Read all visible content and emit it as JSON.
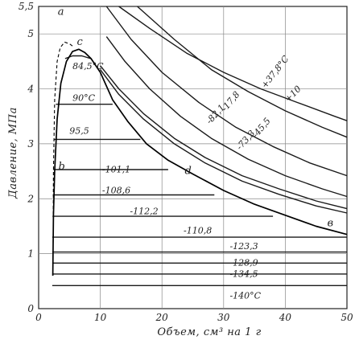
{
  "chart_data": {
    "type": "line",
    "title": "",
    "xlabel": "Объем, см³ на 1 г",
    "ylabel": "Давление, МПа",
    "xlim": [
      0,
      50
    ],
    "ylim": [
      0,
      5.5
    ],
    "x_ticks": [
      "0",
      "10",
      "20",
      "30",
      "40",
      "50"
    ],
    "y_ticks": [
      "0",
      "1",
      "2",
      "3",
      "4",
      "5",
      "5,5"
    ],
    "grid": true,
    "point_labels": [
      "a",
      "c",
      "b",
      "d",
      "в"
    ],
    "point_positions": [
      [
        3.1,
        5.35
      ],
      [
        6.2,
        4.8
      ],
      [
        3.2,
        2.53
      ],
      [
        23.7,
        2.45
      ],
      [
        46.8,
        1.5
      ]
    ],
    "dome": {
      "name": "",
      "x": [
        2.3,
        2.4,
        2.6,
        3.0,
        3.6,
        4.5,
        5.5,
        6.5,
        7.5,
        8.5,
        10.0,
        12.0,
        14.5,
        17.5,
        21.0,
        25.0,
        30.0,
        35.0,
        40.0,
        45.0,
        50.0
      ],
      "y": [
        0.6,
        1.7,
        2.5,
        3.45,
        4.1,
        4.5,
        4.68,
        4.72,
        4.66,
        4.55,
        4.3,
        3.8,
        3.4,
        3.0,
        2.7,
        2.45,
        2.15,
        1.9,
        1.7,
        1.5,
        1.35
      ]
    },
    "dashed_curve": {
      "x": [
        2.35,
        2.4,
        2.6,
        3.0,
        3.5,
        4.2,
        5.0,
        5.5
      ],
      "y": [
        1.2,
        2.5,
        3.8,
        4.5,
        4.75,
        4.85,
        4.82,
        4.78
      ]
    },
    "isotherms": [
      {
        "label": "+37,8°C",
        "x": [
          13.0,
          18.0,
          24.0,
          30.0,
          36.0,
          42.0,
          48.0,
          50.0
        ],
        "y": [
          5.5,
          5.1,
          4.65,
          4.3,
          4.0,
          3.75,
          3.5,
          3.42
        ],
        "label_at": [
          36.8,
          4.0
        ],
        "label_angle": -52
      },
      {
        "label": "+10",
        "x": [
          16.0,
          22.0,
          28.0,
          34.0,
          40.0,
          46.0,
          50.0
        ],
        "y": [
          5.5,
          4.9,
          4.35,
          3.95,
          3.6,
          3.3,
          3.12
        ],
        "label_at": [
          40.5,
          3.75
        ],
        "label_angle": -45
      },
      {
        "label": "-17,8",
        "x": [
          11.0,
          15.0,
          20.0,
          26.0,
          32.0,
          38.0,
          44.0,
          50.0
        ],
        "y": [
          5.5,
          4.9,
          4.3,
          3.75,
          3.3,
          2.95,
          2.65,
          2.42
        ],
        "label_at": [
          30.3,
          3.58
        ],
        "label_angle": -50
      },
      {
        "label": "-45,5",
        "x": [
          11.0,
          14.0,
          18.0,
          23.0,
          28.0,
          34.0,
          40.0,
          46.0,
          50.0
        ],
        "y": [
          4.95,
          4.5,
          4.0,
          3.5,
          3.1,
          2.72,
          2.42,
          2.18,
          2.04
        ],
        "label_at": [
          35.3,
          3.1
        ],
        "label_angle": -50
      },
      {
        "label": "-82,1",
        "x": [
          10.0,
          13.0,
          17.0,
          22.0,
          27.0,
          33.0,
          39.0,
          45.0,
          50.0
        ],
        "y": [
          4.42,
          4.0,
          3.55,
          3.1,
          2.75,
          2.42,
          2.18,
          1.96,
          1.82
        ],
        "label_at": [
          27.8,
          3.35
        ],
        "label_angle": -48
      },
      {
        "label": "-73,3",
        "x": [
          10.0,
          13.0,
          17.0,
          22.0,
          27.0,
          33.0,
          39.0,
          45.0,
          50.0
        ],
        "y": [
          4.35,
          3.9,
          3.45,
          3.0,
          2.65,
          2.32,
          2.08,
          1.87,
          1.74
        ],
        "label_at": [
          32.7,
          2.88
        ],
        "label_angle": -48
      },
      {
        "label": "84,5°C",
        "x": [
          4.3,
          5.5,
          7.0,
          8.5
        ],
        "y": [
          4.55,
          4.6,
          4.6,
          4.55
        ],
        "label_at": [
          5.5,
          4.36
        ],
        "label_angle": 0
      },
      {
        "label": "90°C",
        "x": [
          2.8,
          12.0
        ],
        "y": [
          3.72,
          3.72
        ],
        "label_at": [
          5.5,
          3.78
        ],
        "label_angle": 0
      },
      {
        "label": "95,5",
        "x": [
          2.5,
          16.5
        ],
        "y": [
          3.08,
          3.08
        ],
        "label_at": [
          5.0,
          3.18
        ],
        "label_angle": 0
      },
      {
        "label": "-101,1",
        "x": [
          2.4,
          21.0
        ],
        "y": [
          2.53,
          2.53
        ],
        "label_at": [
          10.3,
          2.48
        ],
        "label_angle": 0
      },
      {
        "label": "-108,6",
        "x": [
          2.3,
          28.5
        ],
        "y": [
          2.07,
          2.07
        ],
        "label_at": [
          10.3,
          2.1
        ],
        "label_angle": 0
      },
      {
        "label": "-112,2",
        "x": [
          2.25,
          38.0
        ],
        "y": [
          1.68,
          1.68
        ],
        "label_at": [
          14.8,
          1.72
        ],
        "label_angle": 0
      },
      {
        "label": "-110,8",
        "x": [
          2.2,
          50.0
        ],
        "y": [
          1.3,
          1.3
        ],
        "label_at": [
          23.5,
          1.37
        ],
        "label_angle": 0
      },
      {
        "label": "-123,3",
        "x": [
          2.2,
          50.0
        ],
        "y": [
          1.03,
          1.03
        ],
        "label_at": [
          31.0,
          1.08
        ],
        "label_angle": 0
      },
      {
        "label": "-128,9",
        "x": [
          2.2,
          50.0
        ],
        "y": [
          0.83,
          0.83
        ],
        "label_at": [
          31.0,
          0.78
        ],
        "label_angle": 0
      },
      {
        "label": "-134,5",
        "x": [
          2.2,
          50.0
        ],
        "y": [
          0.63,
          0.63
        ],
        "label_at": [
          31.0,
          0.58
        ],
        "label_angle": 0
      },
      {
        "label": "-140°C",
        "x": [
          2.2,
          50.0
        ],
        "y": [
          0.42,
          0.42
        ],
        "label_at": [
          31.0,
          0.18
        ],
        "label_angle": 0
      }
    ]
  }
}
